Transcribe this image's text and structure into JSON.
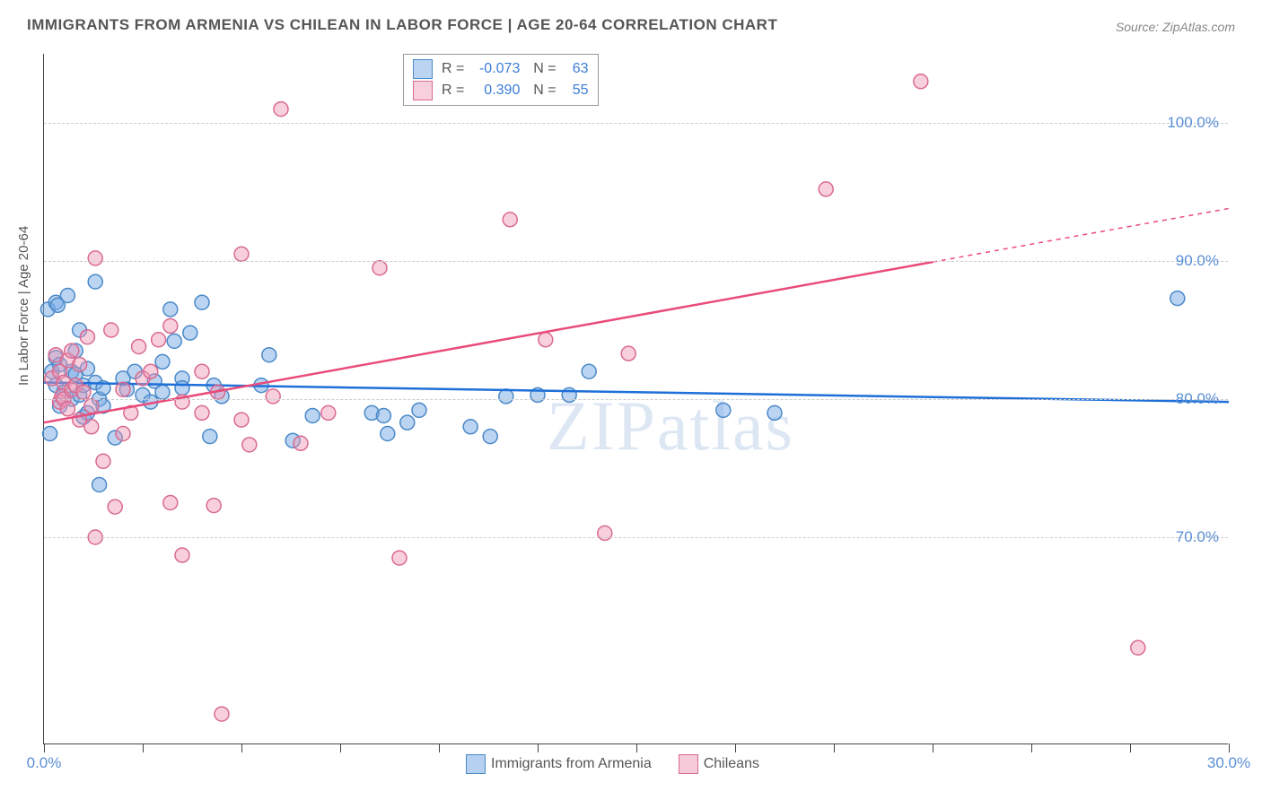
{
  "title": "IMMIGRANTS FROM ARMENIA VS CHILEAN IN LABOR FORCE | AGE 20-64 CORRELATION CHART",
  "source": "Source: ZipAtlas.com",
  "watermark": "ZIPatlas",
  "ylabel": "In Labor Force | Age 20-64",
  "chart": {
    "type": "scatter",
    "xlim": [
      0,
      30
    ],
    "ylim": [
      55,
      105
    ],
    "x_ticks": [
      0,
      2.5,
      5,
      7.5,
      10,
      12.5,
      15,
      17.5,
      20,
      22.5,
      25,
      27.5,
      30
    ],
    "x_tick_labels": {
      "0": "0.0%",
      "30": "30.0%"
    },
    "y_gridlines": [
      70,
      80,
      90,
      100
    ],
    "y_tick_labels": {
      "70": "70.0%",
      "80": "80.0%",
      "90": "90.0%",
      "100": "100.0%"
    },
    "background_color": "#ffffff",
    "grid_color": "#cccccc",
    "marker_radius": 8,
    "marker_stroke_width": 1.5,
    "trend_line_width": 2.5,
    "series": [
      {
        "name": "Immigrants from Armenia",
        "fill": "rgba(120,170,230,0.5)",
        "stroke": "#4a89c8",
        "trend_color": "#1e6fd9",
        "R": "-0.073",
        "N": "63",
        "trend": {
          "x1": 0,
          "y1": 81.2,
          "x2": 30,
          "y2": 79.8
        },
        "points": [
          [
            0.1,
            86.5
          ],
          [
            0.15,
            77.5
          ],
          [
            0.2,
            82
          ],
          [
            0.3,
            87
          ],
          [
            0.3,
            81
          ],
          [
            0.3,
            83
          ],
          [
            0.35,
            86.8
          ],
          [
            0.4,
            82.5
          ],
          [
            0.4,
            79.5
          ],
          [
            0.5,
            80.5
          ],
          [
            0.6,
            87.5
          ],
          [
            0.7,
            82
          ],
          [
            0.7,
            80
          ],
          [
            0.8,
            81.8
          ],
          [
            0.8,
            83.5
          ],
          [
            0.9,
            85
          ],
          [
            0.9,
            80.3
          ],
          [
            1.0,
            81
          ],
          [
            1.0,
            78.7
          ],
          [
            1.1,
            82.2
          ],
          [
            1.1,
            79
          ],
          [
            1.3,
            88.5
          ],
          [
            1.3,
            81.2
          ],
          [
            1.4,
            73.8
          ],
          [
            1.4,
            80
          ],
          [
            1.5,
            79.5
          ],
          [
            1.5,
            80.8
          ],
          [
            1.8,
            77.2
          ],
          [
            2.0,
            81.5
          ],
          [
            2.1,
            80.7
          ],
          [
            2.3,
            82
          ],
          [
            2.5,
            80.3
          ],
          [
            2.7,
            79.8
          ],
          [
            2.8,
            81.3
          ],
          [
            3.0,
            80.5
          ],
          [
            3.0,
            82.7
          ],
          [
            3.2,
            86.5
          ],
          [
            3.3,
            84.2
          ],
          [
            3.5,
            81.5
          ],
          [
            3.5,
            80.8
          ],
          [
            3.7,
            84.8
          ],
          [
            4.0,
            87
          ],
          [
            4.2,
            77.3
          ],
          [
            4.3,
            81
          ],
          [
            4.5,
            80.2
          ],
          [
            5.5,
            81
          ],
          [
            5.7,
            83.2
          ],
          [
            6.3,
            77
          ],
          [
            6.8,
            78.8
          ],
          [
            8.3,
            79
          ],
          [
            8.6,
            78.8
          ],
          [
            8.7,
            77.5
          ],
          [
            9.2,
            78.3
          ],
          [
            9.5,
            79.2
          ],
          [
            10.8,
            78
          ],
          [
            11.3,
            77.3
          ],
          [
            11.7,
            80.2
          ],
          [
            12.5,
            80.3
          ],
          [
            13.3,
            80.3
          ],
          [
            13.8,
            82
          ],
          [
            17.2,
            79.2
          ],
          [
            18.5,
            79
          ],
          [
            28.7,
            87.3
          ]
        ]
      },
      {
        "name": "Chileans",
        "fill": "rgba(240,150,180,0.45)",
        "stroke": "#d96a91",
        "trend_color": "#e94b7a",
        "R": "0.390",
        "N": "55",
        "trend": {
          "x1": 0,
          "y1": 78.3,
          "x2": 30,
          "y2": 93.8
        },
        "trend_dash_from_x": 22.5,
        "points": [
          [
            0.2,
            81.5
          ],
          [
            0.3,
            83.2
          ],
          [
            0.4,
            79.8
          ],
          [
            0.4,
            82
          ],
          [
            0.45,
            80.2
          ],
          [
            0.5,
            81.2
          ],
          [
            0.5,
            80
          ],
          [
            0.6,
            82.8
          ],
          [
            0.6,
            79.3
          ],
          [
            0.7,
            83.5
          ],
          [
            0.7,
            80.7
          ],
          [
            0.8,
            81
          ],
          [
            0.9,
            82.5
          ],
          [
            0.9,
            78.5
          ],
          [
            1.0,
            80.5
          ],
          [
            1.1,
            84.5
          ],
          [
            1.2,
            79.5
          ],
          [
            1.2,
            78
          ],
          [
            1.3,
            70
          ],
          [
            1.3,
            90.2
          ],
          [
            1.5,
            75.5
          ],
          [
            1.7,
            85
          ],
          [
            1.8,
            72.2
          ],
          [
            2.0,
            77.5
          ],
          [
            2.0,
            80.7
          ],
          [
            2.2,
            79
          ],
          [
            2.4,
            83.8
          ],
          [
            2.5,
            81.5
          ],
          [
            2.7,
            82
          ],
          [
            2.9,
            84.3
          ],
          [
            3.2,
            72.5
          ],
          [
            3.2,
            85.3
          ],
          [
            3.5,
            79.8
          ],
          [
            3.5,
            68.7
          ],
          [
            4.0,
            82
          ],
          [
            4.0,
            79
          ],
          [
            4.3,
            72.3
          ],
          [
            4.4,
            80.5
          ],
          [
            4.5,
            57.2
          ],
          [
            5.0,
            78.5
          ],
          [
            5.0,
            90.5
          ],
          [
            5.2,
            76.7
          ],
          [
            5.8,
            80.2
          ],
          [
            6.0,
            101
          ],
          [
            6.5,
            76.8
          ],
          [
            7.2,
            79
          ],
          [
            8.5,
            89.5
          ],
          [
            9.0,
            68.5
          ],
          [
            11.8,
            93
          ],
          [
            12.7,
            84.3
          ],
          [
            14.2,
            70.3
          ],
          [
            14.8,
            83.3
          ],
          [
            19.8,
            95.2
          ],
          [
            22.2,
            103
          ],
          [
            27.7,
            62
          ]
        ]
      }
    ]
  },
  "legend_bottom": [
    {
      "label": "Immigrants from Armenia",
      "fill": "rgba(120,170,230,0.55)",
      "stroke": "#4a89c8"
    },
    {
      "label": "Chileans",
      "fill": "rgba(240,150,180,0.5)",
      "stroke": "#d96a91"
    }
  ]
}
